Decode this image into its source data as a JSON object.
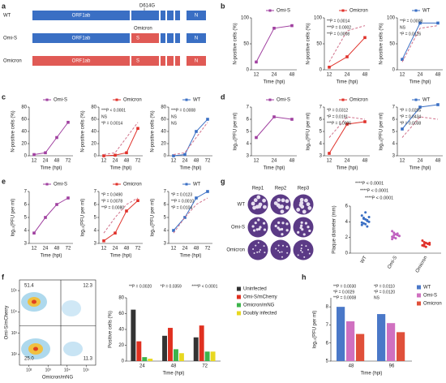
{
  "panel_labels": [
    "a",
    "b",
    "c",
    "d",
    "e",
    "f",
    "g",
    "h"
  ],
  "genome": {
    "rows": [
      "WT",
      "Omi-S",
      "Omicron"
    ],
    "orf": "ORF1ab",
    "s": "S",
    "n": "N",
    "mutation": "D614G",
    "omicron_label": "Omicron"
  },
  "line_charts": [
    {
      "type": "line",
      "categories": [
        12,
        24,
        48
      ],
      "ylim": [
        0,
        100
      ],
      "yticks": [
        0,
        50,
        100
      ],
      "y_label": "N-positive cells (%)",
      "x_label": "Time (hpi)",
      "series": [
        {
          "name": "Omi-S",
          "color": "#a040a0",
          "values": [
            15,
            80,
            85
          ]
        }
      ],
      "annotations": []
    },
    {
      "type": "line",
      "categories": [
        12,
        24,
        48
      ],
      "ylim": [
        0,
        100
      ],
      "yticks": [
        0,
        50,
        100
      ],
      "y_label": "N-positive cells (%)",
      "x_label": "Time (hpi)",
      "series": [
        {
          "name": "Omicron",
          "color": "#e0322b",
          "values": [
            5,
            25,
            62
          ]
        },
        {
          "color": "#d0708a",
          "dashed": true,
          "values": [
            15,
            75,
            85
          ]
        }
      ],
      "annotations": [
        "**P = 0.0014",
        "***P = 0.0002",
        "**P = 0.0008"
      ]
    },
    {
      "type": "line",
      "categories": [
        12,
        24,
        48
      ],
      "ylim": [
        0,
        100
      ],
      "yticks": [
        0,
        50,
        100
      ],
      "y_label": "N-positive cells (%)",
      "x_label": "Time (hpi)",
      "series": [
        {
          "name": "WT",
          "color": "#3a6fc4",
          "values": [
            20,
            90,
            90
          ]
        },
        {
          "color": "#d0708a",
          "dashed": true,
          "values": [
            15,
            80,
            85
          ]
        }
      ],
      "annotations": [
        "**P = 0.0008",
        "NS",
        "*P = 0.0126"
      ]
    },
    {
      "type": "line",
      "categories": [
        12,
        24,
        48,
        72
      ],
      "ylim": [
        0,
        80
      ],
      "yticks": [
        0,
        20,
        40,
        60,
        80
      ],
      "y_label": "N-positive cells (%)",
      "x_label": "Time (hpi)",
      "series": [
        {
          "name": "Omi-S",
          "color": "#a040a0",
          "values": [
            2,
            5,
            30,
            55
          ]
        }
      ],
      "annotations": []
    },
    {
      "type": "line",
      "categories": [
        12,
        24,
        48,
        72
      ],
      "ylim": [
        0,
        80
      ],
      "yticks": [
        0,
        20,
        40,
        60,
        80
      ],
      "y_label": "N-positive cells (%)",
      "x_label": "Time (hpi)",
      "series": [
        {
          "name": "Omicron",
          "color": "#e0322b",
          "values": [
            0,
            1,
            5,
            45
          ]
        },
        {
          "color": "#d0708a",
          "dashed": true,
          "values": [
            2,
            5,
            30,
            55
          ]
        }
      ],
      "annotations": [
        "***P < 0.0001",
        "NS",
        "*P = 0.0014"
      ]
    },
    {
      "type": "line",
      "categories": [
        12,
        24,
        48,
        72
      ],
      "ylim": [
        0,
        80
      ],
      "yticks": [
        0,
        20,
        40,
        60,
        80
      ],
      "y_label": "N-positive cells (%)",
      "x_label": "Time (hpi)",
      "series": [
        {
          "name": "WT",
          "color": "#3a6fc4",
          "values": [
            0,
            2,
            40,
            60
          ]
        },
        {
          "color": "#d0708a",
          "dashed": true,
          "values": [
            2,
            5,
            30,
            55
          ]
        }
      ],
      "annotations": [
        "***P = 0.0008",
        "NS",
        "NS"
      ]
    },
    {
      "type": "line",
      "categories": [
        12,
        24,
        48
      ],
      "ylim": [
        3,
        7
      ],
      "yticks": [
        3,
        4,
        5,
        6,
        7
      ],
      "y_label": "log₁₀(PFU per ml)",
      "x_label": "Time (hpi)",
      "series": [
        {
          "name": "Omi-S",
          "color": "#a040a0",
          "values": [
            4.5,
            6.2,
            6.0
          ]
        }
      ],
      "annotations": []
    },
    {
      "type": "line",
      "categories": [
        12,
        24,
        48
      ],
      "ylim": [
        3,
        7
      ],
      "yticks": [
        3,
        4,
        5,
        6,
        7
      ],
      "y_label": "log₁₀(PFU per ml)",
      "x_label": "Time (hpi)",
      "series": [
        {
          "name": "Omicron",
          "color": "#e0322b",
          "values": [
            3.2,
            5.6,
            5.8
          ]
        },
        {
          "color": "#d0708a",
          "dashed": true,
          "values": [
            4.5,
            6.2,
            6.0
          ]
        }
      ],
      "annotations": [
        "*P = 0.0312",
        "*P = 0.0191",
        "***P = 0.0006"
      ]
    },
    {
      "type": "line",
      "categories": [
        12,
        24,
        48
      ],
      "ylim": [
        3,
        7
      ],
      "yticks": [
        3,
        4,
        5,
        6,
        7
      ],
      "y_label": "log₁₀(PFU per ml)",
      "x_label": "Time (hpi)",
      "series": [
        {
          "name": "WT",
          "color": "#3a6fc4",
          "values": [
            5.2,
            7.0,
            7.2
          ]
        },
        {
          "color": "#d0708a",
          "dashed": true,
          "values": [
            4.5,
            6.2,
            6.0
          ]
        }
      ],
      "annotations": [
        "*P = 0.0205",
        "*P = 0.0434",
        "*P = 0.0038"
      ]
    },
    {
      "type": "line",
      "categories": [
        12,
        24,
        48,
        72
      ],
      "ylim": [
        3,
        7
      ],
      "yticks": [
        3,
        4,
        5,
        6,
        7
      ],
      "y_label": "log₁₀(PFU per ml)",
      "x_label": "Time (hpi)",
      "series": [
        {
          "name": "Omi-S",
          "color": "#a040a0",
          "values": [
            3.8,
            5.0,
            6.0,
            6.5
          ]
        }
      ],
      "annotations": []
    },
    {
      "type": "line",
      "categories": [
        12,
        24,
        48,
        72
      ],
      "ylim": [
        3,
        7
      ],
      "yticks": [
        3,
        4,
        5,
        6,
        7
      ],
      "y_label": "log₁₀(PFU per ml)",
      "x_label": "Time (hpi)",
      "series": [
        {
          "name": "Omicron",
          "color": "#e0322b",
          "values": [
            3.2,
            3.8,
            5.5,
            6.3
          ]
        },
        {
          "color": "#d0708a",
          "dashed": true,
          "values": [
            3.8,
            5.0,
            6.0,
            6.5
          ]
        }
      ],
      "annotations": [
        "*P = 0.0490",
        "*P = 0.0078",
        "**P = 0.0080"
      ]
    },
    {
      "type": "line",
      "categories": [
        12,
        24,
        48,
        72
      ],
      "ylim": [
        3,
        7
      ],
      "yticks": [
        3,
        4,
        5,
        6,
        7
      ],
      "y_label": "log₁₀(PFU per ml)",
      "x_label": "Time (hpi)",
      "series": [
        {
          "name": "WT",
          "color": "#3a6fc4",
          "values": [
            4.0,
            5.0,
            6.5,
            7.0
          ]
        },
        {
          "color": "#d0708a",
          "dashed": true,
          "values": [
            3.8,
            5.0,
            6.0,
            6.5
          ]
        }
      ],
      "annotations": [
        "*P = 0.0123",
        "**P = 0.0010",
        "*P = 0.0104"
      ]
    }
  ],
  "plaques": {
    "columns": [
      "Rep1",
      "Rep2",
      "Rep3"
    ],
    "rows": [
      "WT",
      "Omi-S",
      "Omicron"
    ]
  },
  "strip": {
    "type": "strip",
    "categories": [
      "WT",
      "Omi-S",
      "Omicron"
    ],
    "colors": [
      "#3a6fc4",
      "#c060c0",
      "#e0322b"
    ],
    "values": [
      [
        4.8,
        4.5,
        4.3,
        4.1,
        4.0,
        3.9,
        3.8,
        3.7,
        4.2,
        4.6,
        3.6,
        4.4,
        5.2,
        3.4
      ],
      [
        2.8,
        2.6,
        2.4,
        2.3,
        2.2,
        2.1,
        2.0,
        1.9,
        2.5,
        2.2,
        1.8,
        2.3
      ],
      [
        1.6,
        1.4,
        1.3,
        1.2,
        1.1,
        1.0,
        0.9,
        0.8,
        1.2,
        1.3,
        1.0,
        1.1
      ]
    ],
    "ylim": [
      0,
      6
    ],
    "yticks": [
      0,
      2,
      4,
      6
    ],
    "y_label": "Plaque diameter (mm)",
    "annotations": [
      "****P < 0.0001",
      "****P < 0.0001",
      "****P < 0.0001"
    ]
  },
  "flow": {
    "x_label": "Omicron/mNG",
    "y_label": "Omi-S/mCherry",
    "xlim": [
      1.5,
      5.5
    ],
    "ylim": [
      1.5,
      5.5
    ],
    "xticks": [
      {
        "value": 2,
        "label": "10²"
      },
      {
        "value": 3,
        "label": "10³"
      },
      {
        "value": 4,
        "label": "10⁴"
      },
      {
        "value": 5,
        "label": "10⁵"
      }
    ],
    "yticks": [
      {
        "value": 2,
        "label": "10²"
      },
      {
        "value": 3,
        "label": "10³"
      },
      {
        "value": 4,
        "label": "10⁴"
      },
      {
        "value": 5,
        "label": "10⁵"
      }
    ],
    "quadrants": [
      "51.4",
      "12.3",
      "25.0",
      "11.3"
    ]
  },
  "bars_f": {
    "type": "bar",
    "categories": [
      24,
      48,
      72
    ],
    "ylim": [
      0,
      80
    ],
    "yticks": [
      0,
      20,
      40,
      60,
      80
    ],
    "y_label": "Positive cells (%)",
    "x_label": "Time (hpi)",
    "series": [
      {
        "name": "Uninfected",
        "color": "#333333",
        "values": [
          65,
          32,
          30
        ]
      },
      {
        "name": "Omi-S/mCherry",
        "color": "#e03020",
        "values": [
          25,
          42,
          45
        ]
      },
      {
        "name": "Omicron/mNG",
        "color": "#3cb44b",
        "values": [
          5,
          15,
          12
        ]
      },
      {
        "name": "Doubly infected",
        "color": "#e8d820",
        "values": [
          3,
          10,
          12
        ]
      }
    ],
    "annotations": [
      [
        "**P = 0.0020"
      ],
      [
        "*P = 0.0359"
      ],
      [
        "****P < 0.0001"
      ]
    ]
  },
  "bars_h": {
    "type": "bar",
    "categories": [
      48,
      96
    ],
    "ylim": [
      5,
      8.5
    ],
    "yticks": [
      5,
      6,
      7,
      8
    ],
    "y_label": "log₁₀(PFU per ml)",
    "x_label": "Time (hpi)",
    "series": [
      {
        "name": "WT",
        "color": "#4a78c8",
        "values": [
          8.0,
          7.6
        ]
      },
      {
        "name": "Omi-S",
        "color": "#d070c0",
        "values": [
          7.2,
          7.1
        ]
      },
      {
        "name": "Omicron",
        "color": "#e0503a",
        "values": [
          6.5,
          6.6
        ]
      }
    ],
    "annotations": [
      [
        "**P = 0.0030",
        "*P = 0.0029",
        "**P = 0.0008"
      ],
      [
        "*P = 0.0110",
        "*P = 0.0120",
        "NS"
      ]
    ]
  }
}
